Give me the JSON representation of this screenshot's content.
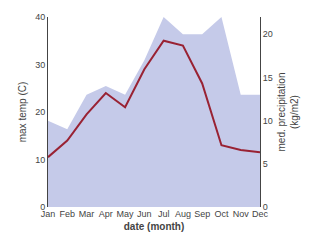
{
  "chart_data": {
    "type": "line",
    "categories": [
      "Jan",
      "Feb",
      "Mar",
      "Apr",
      "May",
      "Jun",
      "Jul",
      "Aug",
      "Sep",
      "Oct",
      "Nov",
      "Dec"
    ],
    "xlabel": "date (month)",
    "ylabel": "max temp (C)",
    "y2label": "med. precipitation\n(kg/m2)",
    "series": [
      {
        "type": "area",
        "axis": "y2",
        "color": "#c5cae9",
        "values": [
          10.0,
          9.0,
          13.0,
          14.0,
          13.0,
          17.0,
          22.0,
          20.0,
          20.0,
          22.0,
          13.0,
          13.0
        ]
      },
      {
        "type": "line",
        "color": "#992233",
        "values": [
          10.5,
          14.0,
          19.5,
          24.0,
          21.0,
          29.0,
          35.0,
          34.0,
          26.0,
          13.0,
          12.0,
          11.5
        ]
      }
    ],
    "ylim": [
      0,
      40
    ],
    "yticks": [
      0,
      10,
      20,
      30,
      40
    ],
    "y2lim": [
      0,
      22
    ],
    "y2ticks": [
      0,
      5,
      10,
      15,
      20
    ],
    "grid": false
  }
}
